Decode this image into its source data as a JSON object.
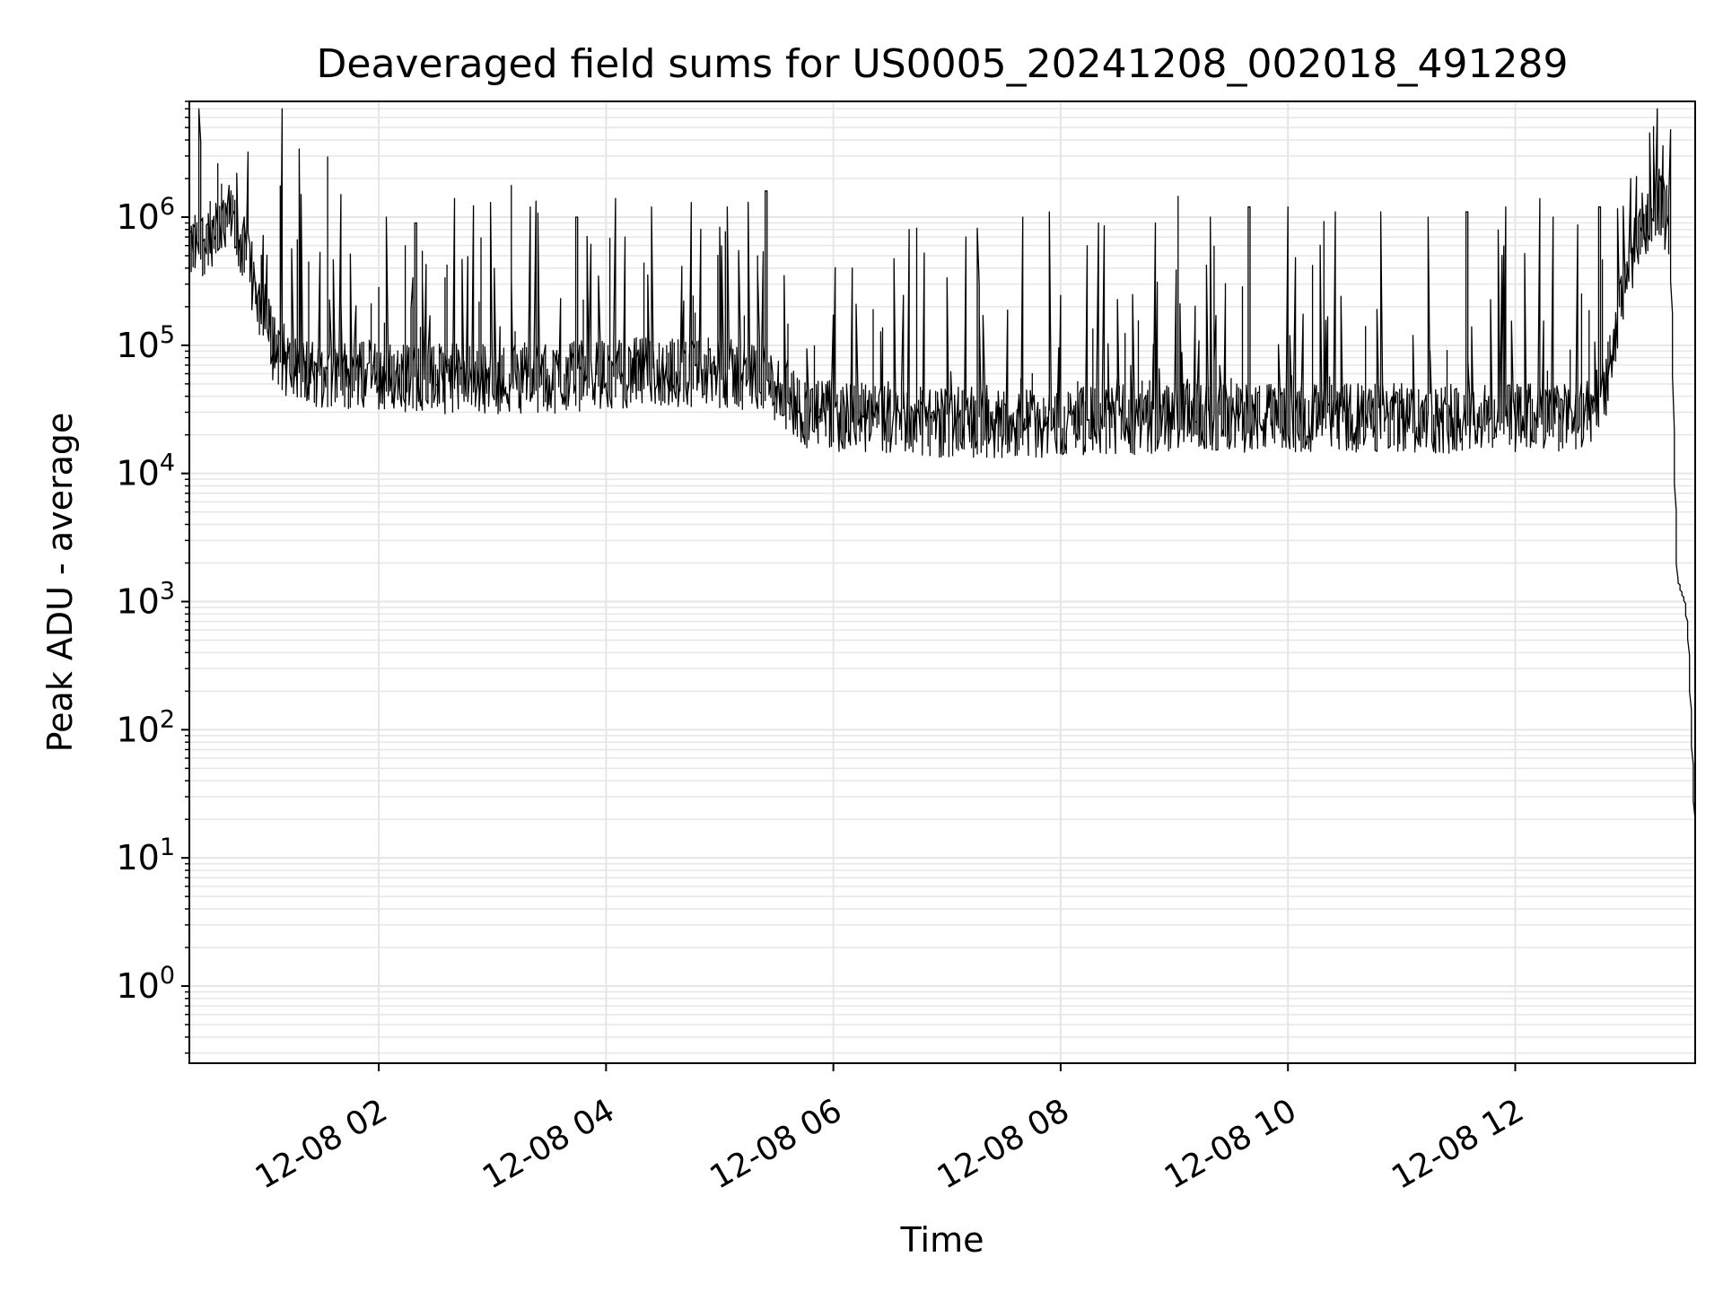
{
  "chart_data": {
    "type": "line",
    "title": "Deaveraged field sums for US0005_20241208_002018_491289",
    "xlabel": "Time",
    "ylabel": "Peak ADU - average",
    "y_scale": "log",
    "grid": true,
    "line_color": "#000000",
    "grid_color": "#e6e6e6",
    "xlim": [
      "2024-12-08 00:20",
      "2024-12-08 13:35"
    ],
    "ylim": [
      0.25,
      8000000
    ],
    "x_ticks": [
      {
        "value": "2024-12-08 02:00",
        "label": "12-08 02"
      },
      {
        "value": "2024-12-08 04:00",
        "label": "12-08 04"
      },
      {
        "value": "2024-12-08 06:00",
        "label": "12-08 06"
      },
      {
        "value": "2024-12-08 08:00",
        "label": "12-08 08"
      },
      {
        "value": "2024-12-08 10:00",
        "label": "12-08 10"
      },
      {
        "value": "2024-12-08 12:00",
        "label": "12-08 12"
      }
    ],
    "y_ticks": [
      {
        "value": 1,
        "base": "10",
        "exp": "0"
      },
      {
        "value": 10,
        "base": "10",
        "exp": "1"
      },
      {
        "value": 100,
        "base": "10",
        "exp": "2"
      },
      {
        "value": 1000,
        "base": "10",
        "exp": "3"
      },
      {
        "value": 10000,
        "base": "10",
        "exp": "4"
      },
      {
        "value": 100000,
        "base": "10",
        "exp": "5"
      },
      {
        "value": 1000000,
        "base": "10",
        "exp": "6"
      }
    ],
    "series": [
      {
        "points": [
          [
            "2024-12-08 00:20",
            500000
          ],
          [
            "2024-12-08 00:30",
            700000
          ],
          [
            "2024-12-08 00:40",
            1100000
          ],
          [
            "2024-12-08 00:45",
            800000
          ],
          [
            "2024-12-08 00:55",
            300000
          ],
          [
            "2024-12-08 01:05",
            100000
          ],
          [
            "2024-12-08 01:15",
            65000
          ],
          [
            "2024-12-08 01:30",
            60000
          ],
          [
            "2024-12-08 02:00",
            58000
          ],
          [
            "2024-12-08 02:30",
            55000
          ],
          [
            "2024-12-08 03:00",
            55000
          ],
          [
            "2024-12-08 03:30",
            55000
          ],
          [
            "2024-12-08 04:00",
            60000
          ],
          [
            "2024-12-08 04:30",
            62000
          ],
          [
            "2024-12-08 05:00",
            60000
          ],
          [
            "2024-12-08 05:20",
            58000
          ],
          [
            "2024-12-08 05:35",
            42000
          ],
          [
            "2024-12-08 05:45",
            30000
          ],
          [
            "2024-12-08 06:00",
            28000
          ],
          [
            "2024-12-08 06:30",
            26000
          ],
          [
            "2024-12-08 07:00",
            25000
          ],
          [
            "2024-12-08 07:30",
            25000
          ],
          [
            "2024-12-08 08:00",
            25000
          ],
          [
            "2024-12-08 09:00",
            27000
          ],
          [
            "2024-12-08 10:00",
            27000
          ],
          [
            "2024-12-08 11:00",
            27000
          ],
          [
            "2024-12-08 12:00",
            27000
          ],
          [
            "2024-12-08 12:40",
            28000
          ],
          [
            "2024-12-08 12:50",
            60000
          ],
          [
            "2024-12-08 13:00",
            400000
          ],
          [
            "2024-12-08 13:10",
            1000000
          ],
          [
            "2024-12-08 13:17",
            1400000
          ],
          [
            "2024-12-08 13:22",
            800000
          ],
          [
            "2024-12-08 13:26",
            1500
          ],
          [
            "2024-12-08 13:30",
            1000
          ],
          [
            "2024-12-08 13:32",
            500
          ],
          [
            "2024-12-08 13:35",
            20
          ]
        ],
        "spikes": [
          [
            "2024-12-08 00:46",
            2200000
          ],
          [
            "2024-12-08 01:20",
            1500000
          ],
          [
            "2024-12-08 01:40",
            1500000
          ],
          [
            "2024-12-08 02:05",
            1000000
          ],
          [
            "2024-12-08 02:20",
            900000
          ],
          [
            "2024-12-08 02:40",
            1400000
          ],
          [
            "2024-12-08 03:00",
            1300000
          ],
          [
            "2024-12-08 03:20",
            1200000
          ],
          [
            "2024-12-08 03:45",
            1000000
          ],
          [
            "2024-12-08 04:05",
            1400000
          ],
          [
            "2024-12-08 04:25",
            1200000
          ],
          [
            "2024-12-08 04:45",
            1300000
          ],
          [
            "2024-12-08 05:05",
            1200000
          ],
          [
            "2024-12-08 05:25",
            1600000
          ],
          [
            "2024-12-08 05:35",
            350000
          ],
          [
            "2024-12-08 06:10",
            400000
          ],
          [
            "2024-12-08 06:40",
            800000
          ],
          [
            "2024-12-08 07:10",
            700000
          ],
          [
            "2024-12-08 07:40",
            1000000
          ],
          [
            "2024-12-08 07:55",
            1100000
          ],
          [
            "2024-12-08 08:20",
            900000
          ],
          [
            "2024-12-08 08:50",
            900000
          ],
          [
            "2024-12-08 09:20",
            1000000
          ],
          [
            "2024-12-08 09:40",
            1200000
          ],
          [
            "2024-12-08 10:00",
            1200000
          ],
          [
            "2024-12-08 10:25",
            1100000
          ],
          [
            "2024-12-08 10:50",
            1100000
          ],
          [
            "2024-12-08 11:15",
            1000000
          ],
          [
            "2024-12-08 11:35",
            1100000
          ],
          [
            "2024-12-08 11:55",
            1200000
          ],
          [
            "2024-12-08 12:20",
            1000000
          ],
          [
            "2024-12-08 12:45",
            1200000
          ],
          [
            "2024-12-08 13:14",
            3800000
          ]
        ]
      }
    ]
  }
}
